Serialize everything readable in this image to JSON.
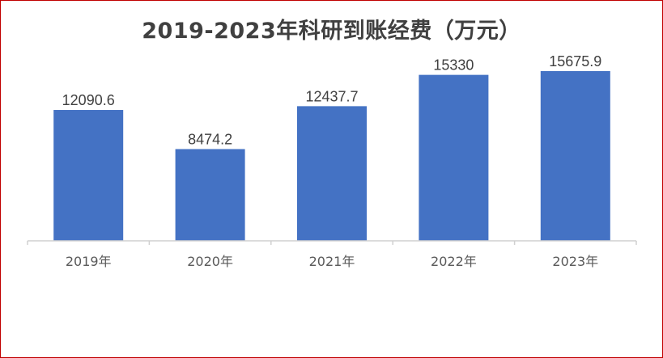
{
  "chart_data": {
    "type": "bar",
    "title": "2019-2023年科研到账经费（万元）",
    "xlabel": "",
    "ylabel": "",
    "categories": [
      "2019年",
      "2020年",
      "2021年",
      "2022年",
      "2023年"
    ],
    "values": [
      12090.6,
      8474.2,
      12437.7,
      15330,
      15675.9
    ],
    "data_labels": [
      "12090.6",
      "8474.2",
      "12437.7",
      "15330",
      "15675.9"
    ],
    "ylim": [
      0,
      15675.9
    ],
    "grid": false,
    "legend": "none",
    "colors": {
      "bar": "#4472c4",
      "title": "#404040",
      "border": "#c00000"
    }
  }
}
